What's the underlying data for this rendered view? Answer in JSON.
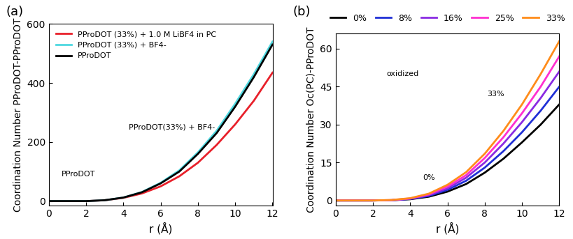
{
  "chart_data": [
    {
      "type": "line",
      "panel_label": "(a)",
      "xlabel": "r (Å)",
      "ylabel": "Coordination Number PProDOT-PProDOT",
      "x": [
        0,
        1,
        2,
        3,
        4,
        5,
        6,
        7,
        8,
        9,
        10,
        11,
        12
      ],
      "series": [
        {
          "name": "PProDOT (33%) + 1.0 M LiBF4 in PC",
          "color": "#e8202a",
          "values": [
            0,
            0,
            0,
            3,
            11,
            26,
            50,
            84,
            130,
            190,
            260,
            340,
            435
          ]
        },
        {
          "name": "PProDOT (33%) + BF4-",
          "color": "#4fd8e0",
          "values": [
            0,
            0,
            0,
            3,
            12,
            31,
            62,
            104,
            165,
            238,
            330,
            430,
            540
          ]
        },
        {
          "name": "PProDOT",
          "color": "#000000",
          "values": [
            0,
            0,
            0,
            3,
            12,
            30,
            60,
            100,
            160,
            230,
            320,
            420,
            530
          ]
        }
      ],
      "annotations": [
        {
          "text": "PProDOT",
          "x": 1.6,
          "y": 90
        },
        {
          "text": "PProDOT(33%) + BF4-",
          "x": 6.6,
          "y": 250
        }
      ],
      "xlim": [
        0,
        12
      ],
      "ylim": [
        -15,
        600
      ],
      "xticks": [
        0,
        2,
        4,
        6,
        8,
        10,
        12
      ],
      "yticks": [
        0,
        200,
        400,
        600
      ],
      "legend": "upper left"
    },
    {
      "type": "line",
      "panel_label": "(b)",
      "xlabel": "r (Å)",
      "ylabel": "Coordination Number Oc(PC)-PProDOT",
      "x": [
        0,
        1,
        2,
        3,
        4,
        5,
        6,
        7,
        8,
        9,
        10,
        11,
        12
      ],
      "series": [
        {
          "name": "0%",
          "color": "#000000",
          "values": [
            0,
            0,
            0,
            0.1,
            0.5,
            1.5,
            3.5,
            6.5,
            11,
            16.5,
            23,
            30,
            38
          ]
        },
        {
          "name": "8%",
          "color": "#1f2fd6",
          "values": [
            0,
            0,
            0,
            0.1,
            0.6,
            1.8,
            4.2,
            7.8,
            13,
            19.5,
            27,
            35.5,
            45
          ]
        },
        {
          "name": "16%",
          "color": "#8a2be2",
          "values": [
            0,
            0,
            0,
            0.1,
            0.7,
            2.1,
            4.8,
            9,
            15,
            22.5,
            31,
            40.5,
            51
          ]
        },
        {
          "name": "25%",
          "color": "#ff2fd0",
          "values": [
            0,
            0,
            0,
            0.15,
            0.8,
            2.4,
            5.5,
            10,
            16.8,
            25,
            34.5,
            45,
            57
          ]
        },
        {
          "name": "33%",
          "color": "#ff8c1a",
          "values": [
            0,
            0,
            0,
            0.2,
            0.9,
            2.7,
            6.2,
            11.2,
            18.5,
            27.5,
            38,
            50,
            63
          ]
        }
      ],
      "annotations": [
        {
          "text": "oxidized",
          "x": 3.6,
          "y": 50
        },
        {
          "text": "0%",
          "x": 5.0,
          "y": 9
        },
        {
          "text": "33%",
          "x": 8.6,
          "y": 42
        }
      ],
      "xlim": [
        0,
        12
      ],
      "ylim": [
        -2,
        66
      ],
      "xticks": [
        0,
        2,
        4,
        6,
        8,
        10,
        12
      ],
      "yticks": [
        0,
        15,
        30,
        45,
        60
      ],
      "legend": "upper center"
    }
  ]
}
